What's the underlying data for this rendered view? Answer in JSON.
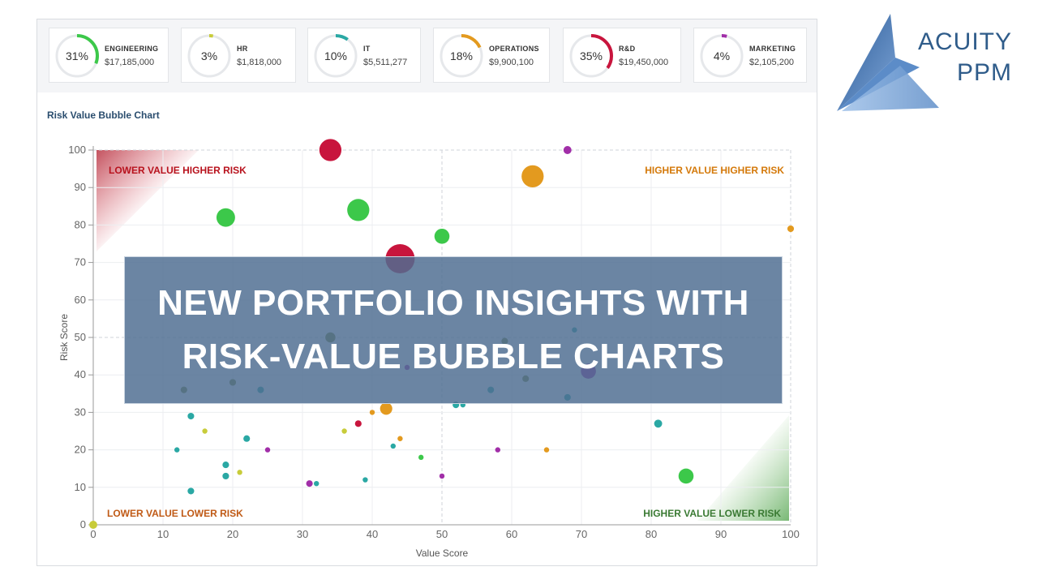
{
  "logo": {
    "line1": "ACUITY",
    "line2": "PPM"
  },
  "kpis": [
    {
      "pct_label": "31%",
      "pct": 0.31,
      "dept": "ENGINEERING",
      "amount": "$17,185,000",
      "color": "#3cc84a"
    },
    {
      "pct_label": "3%",
      "pct": 0.03,
      "dept": "HR",
      "amount": "$1,818,000",
      "color": "#c8cc3a"
    },
    {
      "pct_label": "10%",
      "pct": 0.1,
      "dept": "IT",
      "amount": "$5,511,277",
      "color": "#2aa8a4"
    },
    {
      "pct_label": "18%",
      "pct": 0.18,
      "dept": "OPERATIONS",
      "amount": "$9,900,100",
      "color": "#e39a1f"
    },
    {
      "pct_label": "35%",
      "pct": 0.35,
      "dept": "R&D",
      "amount": "$19,450,000",
      "color": "#c8153d"
    },
    {
      "pct_label": "4%",
      "pct": 0.04,
      "dept": "MARKETING",
      "amount": "$2,105,200",
      "color": "#a12ea8"
    }
  ],
  "banner": {
    "line1": "NEW PORTFOLIO INSIGHTS WITH",
    "line2": "RISK-VALUE BUBBLE CHARTS"
  },
  "chart_data": {
    "type": "scatter",
    "title": "Risk Value Bubble Chart",
    "xlabel": "Value Score",
    "ylabel": "Risk Score",
    "xlim": [
      0,
      100
    ],
    "ylim": [
      0,
      100
    ],
    "xticks": [
      "0",
      "10",
      "20",
      "30",
      "40",
      "50",
      "60",
      "70",
      "80",
      "90",
      "100"
    ],
    "yticks": [
      "0",
      "10",
      "20",
      "30",
      "40",
      "50",
      "60",
      "70",
      "80",
      "90",
      "100"
    ],
    "grid": true,
    "quadrant_labels": {
      "top_left": "LOWER VALUE HIGHER RISK",
      "top_right": "HIGHER VALUE HIGHER RISK",
      "bottom_left": "LOWER VALUE LOWER RISK",
      "bottom_right": "HIGHER VALUE LOWER RISK"
    },
    "quadrant_colors": {
      "top_left": "#b8121d",
      "top_right": "#d4790a",
      "bottom_left": "#c05a16",
      "bottom_right": "#3a7a33"
    },
    "series_colors": {
      "engineering": "#3cc84a",
      "hr": "#c8cc3a",
      "it": "#2aa8a4",
      "operations": "#e39a1f",
      "rnd": "#c8153d",
      "marketing": "#a12ea8",
      "other": "#7a8a3a"
    },
    "points": [
      {
        "x": 34,
        "y": 100,
        "size": 3,
        "group": "rnd"
      },
      {
        "x": 68,
        "y": 100,
        "size": 1,
        "group": "marketing"
      },
      {
        "x": 63,
        "y": 93,
        "size": 3,
        "group": "operations"
      },
      {
        "x": 38,
        "y": 84,
        "size": 3,
        "group": "engineering"
      },
      {
        "x": 19,
        "y": 82,
        "size": 2.5,
        "group": "engineering"
      },
      {
        "x": 100,
        "y": 79,
        "size": 0.8,
        "group": "operations"
      },
      {
        "x": 50,
        "y": 77,
        "size": 2,
        "group": "engineering"
      },
      {
        "x": 44,
        "y": 71,
        "size": 4,
        "group": "rnd"
      },
      {
        "x": 34,
        "y": 50,
        "size": 1.3,
        "group": "other"
      },
      {
        "x": 69,
        "y": 52,
        "size": 0.6,
        "group": "it"
      },
      {
        "x": 59,
        "y": 49,
        "size": 0.8,
        "group": "other"
      },
      {
        "x": 71,
        "y": 41,
        "size": 2,
        "group": "marketing"
      },
      {
        "x": 45,
        "y": 42,
        "size": 0.6,
        "group": "marketing"
      },
      {
        "x": 13,
        "y": 36,
        "size": 0.8,
        "group": "other"
      },
      {
        "x": 20,
        "y": 38,
        "size": 0.8,
        "group": "other"
      },
      {
        "x": 24,
        "y": 36,
        "size": 0.8,
        "group": "it"
      },
      {
        "x": 57,
        "y": 36,
        "size": 0.8,
        "group": "it"
      },
      {
        "x": 62,
        "y": 39,
        "size": 0.8,
        "group": "other"
      },
      {
        "x": 68,
        "y": 34,
        "size": 0.8,
        "group": "it"
      },
      {
        "x": 14,
        "y": 29,
        "size": 0.8,
        "group": "it"
      },
      {
        "x": 42,
        "y": 31,
        "size": 1.6,
        "group": "operations"
      },
      {
        "x": 40,
        "y": 30,
        "size": 0.6,
        "group": "operations"
      },
      {
        "x": 52,
        "y": 32,
        "size": 0.8,
        "group": "it"
      },
      {
        "x": 53,
        "y": 32,
        "size": 0.6,
        "group": "it"
      },
      {
        "x": 81,
        "y": 27,
        "size": 1,
        "group": "it"
      },
      {
        "x": 38,
        "y": 27,
        "size": 0.8,
        "group": "rnd"
      },
      {
        "x": 16,
        "y": 25,
        "size": 0.6,
        "group": "hr"
      },
      {
        "x": 36,
        "y": 25,
        "size": 0.6,
        "group": "hr"
      },
      {
        "x": 22,
        "y": 23,
        "size": 0.8,
        "group": "it"
      },
      {
        "x": 44,
        "y": 23,
        "size": 0.6,
        "group": "operations"
      },
      {
        "x": 12,
        "y": 20,
        "size": 0.6,
        "group": "it"
      },
      {
        "x": 25,
        "y": 20,
        "size": 0.6,
        "group": "marketing"
      },
      {
        "x": 43,
        "y": 21,
        "size": 0.6,
        "group": "it"
      },
      {
        "x": 58,
        "y": 20,
        "size": 0.6,
        "group": "marketing"
      },
      {
        "x": 65,
        "y": 20,
        "size": 0.6,
        "group": "operations"
      },
      {
        "x": 47,
        "y": 18,
        "size": 0.6,
        "group": "engineering"
      },
      {
        "x": 19,
        "y": 16,
        "size": 0.8,
        "group": "it"
      },
      {
        "x": 21,
        "y": 14,
        "size": 0.6,
        "group": "hr"
      },
      {
        "x": 19,
        "y": 13,
        "size": 0.8,
        "group": "it"
      },
      {
        "x": 50,
        "y": 13,
        "size": 0.6,
        "group": "marketing"
      },
      {
        "x": 85,
        "y": 13,
        "size": 2,
        "group": "engineering"
      },
      {
        "x": 39,
        "y": 12,
        "size": 0.6,
        "group": "it"
      },
      {
        "x": 31,
        "y": 11,
        "size": 0.8,
        "group": "marketing"
      },
      {
        "x": 32,
        "y": 11,
        "size": 0.6,
        "group": "it"
      },
      {
        "x": 14,
        "y": 9,
        "size": 0.8,
        "group": "it"
      },
      {
        "x": 0,
        "y": 0,
        "size": 1,
        "group": "hr"
      }
    ]
  }
}
